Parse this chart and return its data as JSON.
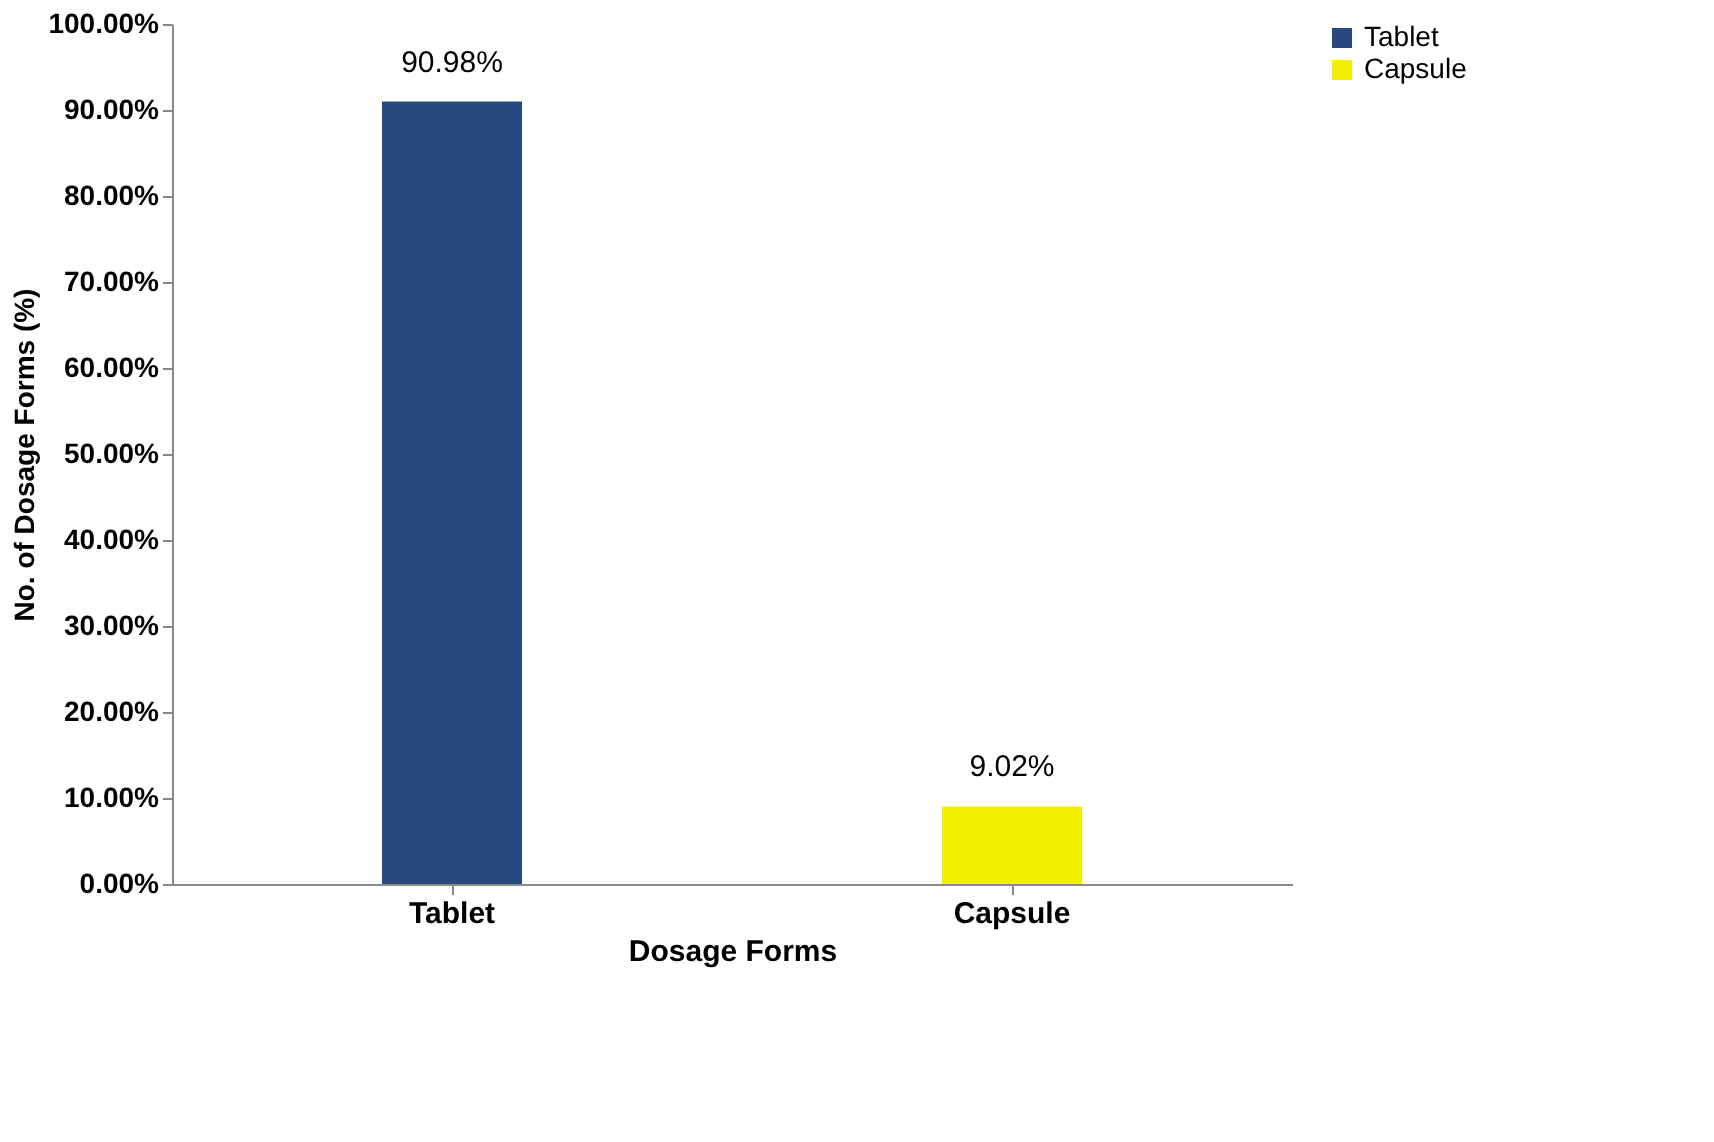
{
  "chart_data": {
    "type": "bar",
    "categories": [
      "Tablet",
      "Capsule"
    ],
    "series": [
      {
        "name": "Tablet",
        "color": "#264a7e",
        "values": [
          90.98,
          null
        ],
        "value_labels": [
          "90.98%",
          null
        ]
      },
      {
        "name": "Capsule",
        "color": "#f0f000",
        "values": [
          null,
          9.02
        ],
        "value_labels": [
          null,
          "9.02%"
        ]
      }
    ],
    "xlabel": "Dosage Forms",
    "ylabel": "No. of Dosage Forms (%)",
    "ylim": [
      0,
      100
    ],
    "yticks": [
      {
        "value": 0,
        "label": "0.00%"
      },
      {
        "value": 10,
        "label": "10.00%"
      },
      {
        "value": 20,
        "label": "20.00%"
      },
      {
        "value": 30,
        "label": "30.00%"
      },
      {
        "value": 40,
        "label": "40.00%"
      },
      {
        "value": 50,
        "label": "50.00%"
      },
      {
        "value": 60,
        "label": "60.00%"
      },
      {
        "value": 70,
        "label": "70.00%"
      },
      {
        "value": 80,
        "label": "80.00%"
      },
      {
        "value": 90,
        "label": "90.00%"
      },
      {
        "value": 100,
        "label": "100.00%"
      }
    ],
    "legend": "right",
    "grid": false
  }
}
